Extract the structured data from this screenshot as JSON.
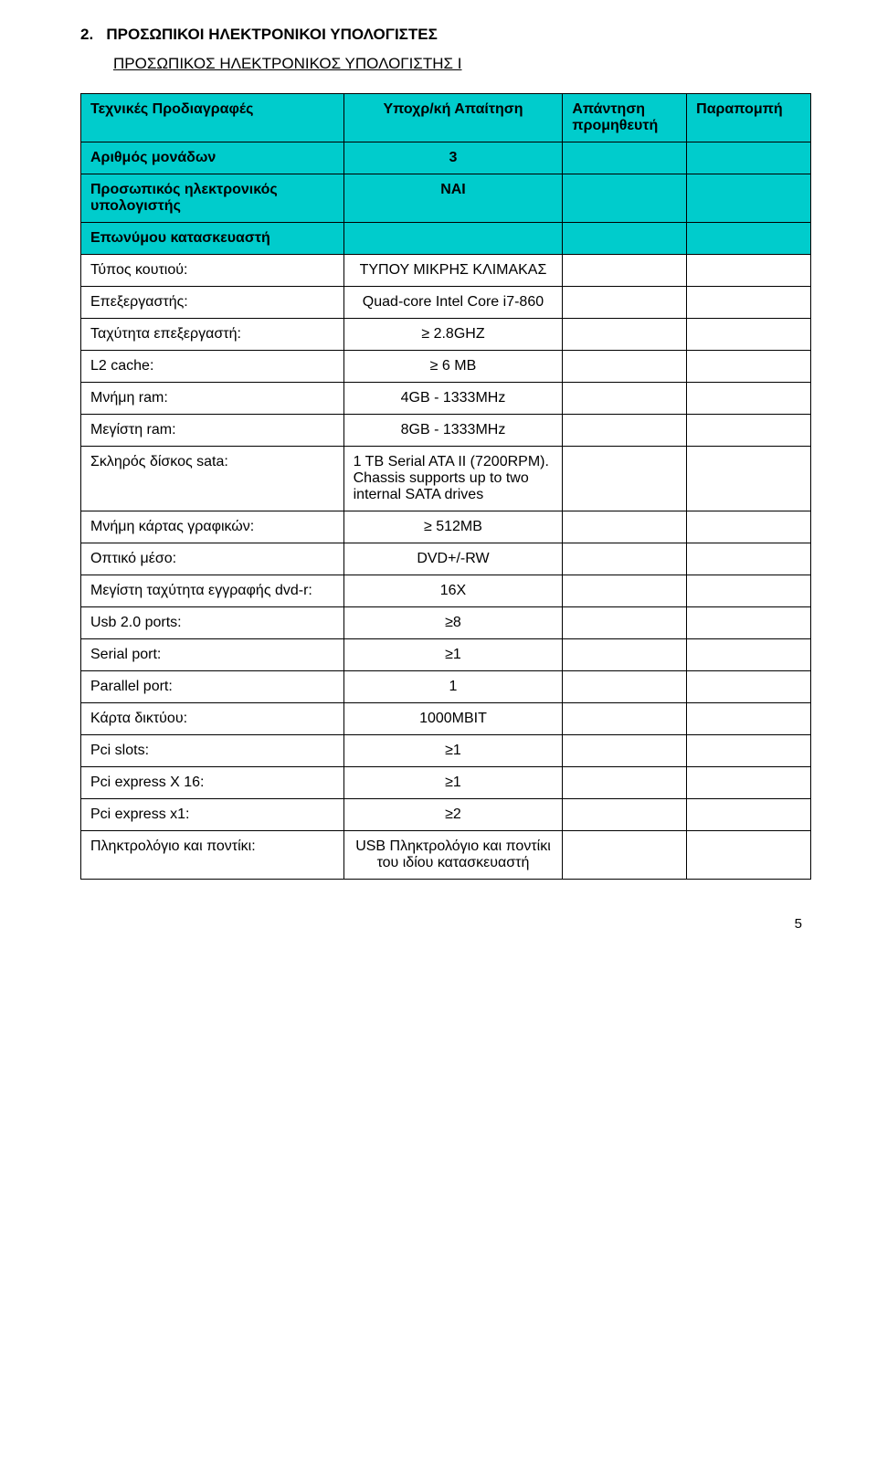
{
  "section": {
    "number": "2.",
    "title": "ΠΡΟΣΩΠΙΚΟΙ ΗΛΕΚΤΡΟΝΙΚΟΙ ΥΠΟΛΟΓΙΣΤΕΣ",
    "subtitle": "ΠΡΟΣΩΠΙΚΟΣ ΗΛΕΚΤΡΟΝΙΚΟΣ ΥΠΟΛΟΓΙΣΤΗΣ  I"
  },
  "headers": {
    "col1": "Τεχνικές Προδιαγραφές",
    "col2": "Υποχρ/κή Απαίτηση",
    "col3": "Απάντηση προμηθευτή",
    "col4": "Παραπομπή"
  },
  "rows": [
    {
      "turq": true,
      "label": "Αριθμός μονάδων",
      "value": "3",
      "align": "center",
      "bold": true
    },
    {
      "turq": true,
      "label": "Προσωπικός ηλεκτρονικός υπολογιστής",
      "value": "ΝΑΙ",
      "align": "center",
      "bold": true
    },
    {
      "turq": true,
      "label": "Επωνύμου κατασκευαστή",
      "value": "",
      "align": "center",
      "bold": true
    },
    {
      "turq": false,
      "label": "Τύπος κουτιού:",
      "value": "ΤΥΠΟΥ ΜΙΚΡΗΣ ΚΛΙΜΑΚΑΣ",
      "align": "center"
    },
    {
      "turq": false,
      "label": "Επεξεργαστής:",
      "value": "Quad-core Intel Core i7-860",
      "align": "center"
    },
    {
      "turq": false,
      "label": "Ταχύτητα επεξεργαστή:",
      "value": "≥ 2.8GHZ",
      "align": "center"
    },
    {
      "turq": false,
      "label": "L2 cache:",
      "value": "≥ 6 MB",
      "align": "center"
    },
    {
      "turq": false,
      "label": "Μνήμη ram:",
      "value": "4GB - 1333MHz",
      "align": "center"
    },
    {
      "turq": false,
      "label": "Μεγίστη ram:",
      "value": "8GB - 1333MHz",
      "align": "center"
    },
    {
      "turq": false,
      "label": "Σκληρός δίσκος sata:",
      "value": "1 TB Serial ATA II (7200RPM). Chassis supports up to two internal SATA drives",
      "align": "left"
    },
    {
      "turq": false,
      "label": "Μνήμη κάρτας γραφικών:",
      "value": "≥ 512ΜΒ",
      "align": "center"
    },
    {
      "turq": false,
      "label": "Οπτικό  μέσο:",
      "value": "DVD+/-RW",
      "align": "center"
    },
    {
      "turq": false,
      "label": "Μεγίστη ταχύτητα εγγραφής dvd-r:",
      "value": "16Χ",
      "align": "center"
    },
    {
      "turq": false,
      "label": "Usb 2.0 ports:",
      "value": "≥8",
      "align": "center"
    },
    {
      "turq": false,
      "label": "Serial port:",
      "value": "≥1",
      "align": "center"
    },
    {
      "turq": false,
      "label": "Parallel port:",
      "value": "1",
      "align": "center"
    },
    {
      "turq": false,
      "label": "Κάρτα δικτύου:",
      "value": "1000MBIT",
      "align": "center"
    },
    {
      "turq": false,
      "label": "Pci slots:",
      "value": "≥1",
      "align": "center"
    },
    {
      "turq": false,
      "label": "Pci express X 16:",
      "value": "≥1",
      "align": "center"
    },
    {
      "turq": false,
      "label": "Pci express x1:",
      "value": "≥2",
      "align": "center"
    },
    {
      "turq": false,
      "label": "Πληκτρολόγιο και  ποντίκι:",
      "value": "USB  Πληκτρολόγιο και ποντίκι του ιδίου κατασκευαστή",
      "align": "center"
    }
  ],
  "colors": {
    "turquoise": "#00cccc",
    "border": "#000000",
    "text": "#000000",
    "background": "#ffffff"
  },
  "page_number": "5"
}
